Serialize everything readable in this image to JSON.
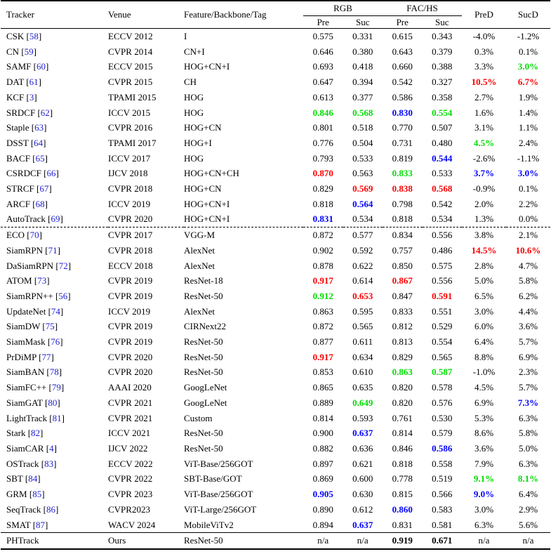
{
  "headers": {
    "tracker": "Tracker",
    "venue": "Venue",
    "feature": "Feature/Backbone/Tag",
    "rgb": "RGB",
    "fachs": "FAC/HS",
    "pred": "PreD",
    "sucd": "SucD",
    "pre": "Pre",
    "suc": "Suc"
  },
  "rows": [
    {
      "name": "CSK",
      "ref": "58",
      "venue": "ECCV 2012",
      "feat": "I",
      "vals": [
        {
          "v": "0.575"
        },
        {
          "v": "0.331"
        },
        {
          "v": "0.615"
        },
        {
          "v": "0.343"
        },
        {
          "v": "-4.0%"
        },
        {
          "v": "-1.2%"
        }
      ]
    },
    {
      "name": "CN",
      "ref": "59",
      "venue": "CVPR 2014",
      "feat": "CN+I",
      "vals": [
        {
          "v": "0.646"
        },
        {
          "v": "0.380"
        },
        {
          "v": "0.643"
        },
        {
          "v": "0.379"
        },
        {
          "v": "0.3%"
        },
        {
          "v": "0.1%"
        }
      ]
    },
    {
      "name": "SAMF",
      "ref": "60",
      "venue": "ECCV 2015",
      "feat": "HOG+CN+I",
      "vals": [
        {
          "v": "0.693"
        },
        {
          "v": "0.418"
        },
        {
          "v": "0.660"
        },
        {
          "v": "0.388"
        },
        {
          "v": "3.3%"
        },
        {
          "v": "3.0%",
          "c": "green"
        }
      ]
    },
    {
      "name": "DAT",
      "ref": "61",
      "venue": "CVPR 2015",
      "feat": "CH",
      "vals": [
        {
          "v": "0.647"
        },
        {
          "v": "0.394"
        },
        {
          "v": "0.542"
        },
        {
          "v": "0.327"
        },
        {
          "v": "10.5%",
          "c": "red"
        },
        {
          "v": "6.7%",
          "c": "red"
        }
      ]
    },
    {
      "name": "KCF",
      "ref": "3",
      "venue": "TPAMI 2015",
      "feat": "HOG",
      "vals": [
        {
          "v": "0.613"
        },
        {
          "v": "0.377"
        },
        {
          "v": "0.586"
        },
        {
          "v": "0.358"
        },
        {
          "v": "2.7%"
        },
        {
          "v": "1.9%"
        }
      ]
    },
    {
      "name": "SRDCF",
      "ref": "62",
      "venue": "ICCV 2015",
      "feat": "HOG",
      "vals": [
        {
          "v": "0.846",
          "c": "green"
        },
        {
          "v": "0.568",
          "c": "green"
        },
        {
          "v": "0.830",
          "c": "blue"
        },
        {
          "v": "0.554",
          "c": "green"
        },
        {
          "v": "1.6%"
        },
        {
          "v": "1.4%"
        }
      ]
    },
    {
      "name": "Staple",
      "ref": "63",
      "venue": "CVPR 2016",
      "feat": "HOG+CN",
      "vals": [
        {
          "v": "0.801"
        },
        {
          "v": "0.518"
        },
        {
          "v": "0.770"
        },
        {
          "v": "0.507"
        },
        {
          "v": "3.1%"
        },
        {
          "v": "1.1%"
        }
      ]
    },
    {
      "name": "DSST",
      "ref": "64",
      "venue": "TPAMI 2017",
      "feat": "HOG+I",
      "vals": [
        {
          "v": "0.776"
        },
        {
          "v": "0.504"
        },
        {
          "v": "0.731"
        },
        {
          "v": "0.480"
        },
        {
          "v": "4.5%",
          "c": "green"
        },
        {
          "v": "2.4%"
        }
      ]
    },
    {
      "name": "BACF",
      "ref": "65",
      "venue": "ICCV 2017",
      "feat": "HOG",
      "vals": [
        {
          "v": "0.793"
        },
        {
          "v": "0.533"
        },
        {
          "v": "0.819"
        },
        {
          "v": "0.544",
          "c": "blue"
        },
        {
          "v": "-2.6%"
        },
        {
          "v": "-1.1%"
        }
      ]
    },
    {
      "name": "CSRDCF",
      "ref": "66",
      "venue": "IJCV 2018",
      "feat": "HOG+CN+CH",
      "vals": [
        {
          "v": "0.870",
          "c": "red"
        },
        {
          "v": "0.563"
        },
        {
          "v": "0.833",
          "c": "green"
        },
        {
          "v": "0.533"
        },
        {
          "v": "3.7%",
          "c": "blue"
        },
        {
          "v": "3.0%",
          "c": "blue"
        }
      ]
    },
    {
      "name": "STRCF",
      "ref": "67",
      "venue": "CVPR 2018",
      "feat": "HOG+CN",
      "vals": [
        {
          "v": "0.829"
        },
        {
          "v": "0.569",
          "c": "red"
        },
        {
          "v": "0.838",
          "c": "red"
        },
        {
          "v": "0.568",
          "c": "red"
        },
        {
          "v": "-0.9%"
        },
        {
          "v": "0.1%"
        }
      ]
    },
    {
      "name": "ARCF",
      "ref": "68",
      "venue": "ICCV 2019",
      "feat": "HOG+CN+I",
      "vals": [
        {
          "v": "0.818"
        },
        {
          "v": "0.564",
          "c": "blue"
        },
        {
          "v": "0.798"
        },
        {
          "v": "0.542"
        },
        {
          "v": "2.0%"
        },
        {
          "v": "2.2%"
        }
      ]
    },
    {
      "name": "AutoTrack",
      "ref": "69",
      "venue": "CVPR 2020",
      "feat": "HOG+CN+I",
      "vals": [
        {
          "v": "0.831",
          "c": "blue"
        },
        {
          "v": "0.534"
        },
        {
          "v": "0.818"
        },
        {
          "v": "0.534"
        },
        {
          "v": "1.3%"
        },
        {
          "v": "0.0%"
        }
      ]
    },
    {
      "name": "ECO",
      "ref": "70",
      "venue": "CVPR 2017",
      "feat": "VGG-M",
      "sep": "dashed",
      "vals": [
        {
          "v": "0.872"
        },
        {
          "v": "0.577"
        },
        {
          "v": "0.834"
        },
        {
          "v": "0.556"
        },
        {
          "v": "3.8%"
        },
        {
          "v": "2.1%"
        }
      ]
    },
    {
      "name": "SiamRPN",
      "ref": "71",
      "venue": "CVPR 2018",
      "feat": "AlexNet",
      "vals": [
        {
          "v": "0.902"
        },
        {
          "v": "0.592"
        },
        {
          "v": "0.757"
        },
        {
          "v": "0.486"
        },
        {
          "v": "14.5%",
          "c": "red"
        },
        {
          "v": "10.6%",
          "c": "red"
        }
      ]
    },
    {
      "name": "DaSiamRPN",
      "ref": "72",
      "venue": "ECCV 2018",
      "feat": "AlexNet",
      "vals": [
        {
          "v": "0.878"
        },
        {
          "v": "0.622"
        },
        {
          "v": "0.850"
        },
        {
          "v": "0.575"
        },
        {
          "v": "2.8%"
        },
        {
          "v": "4.7%"
        }
      ]
    },
    {
      "name": "ATOM",
      "ref": "73",
      "venue": "CVPR 2019",
      "feat": "ResNet-18",
      "vals": [
        {
          "v": "0.917",
          "c": "red"
        },
        {
          "v": "0.614"
        },
        {
          "v": "0.867",
          "c": "red"
        },
        {
          "v": "0.556"
        },
        {
          "v": "5.0%"
        },
        {
          "v": "5.8%"
        }
      ]
    },
    {
      "name": "SiamRPN++",
      "ref": "56",
      "venue": "CVPR 2019",
      "feat": "ResNet-50",
      "vals": [
        {
          "v": "0.912",
          "c": "green"
        },
        {
          "v": "0.653",
          "c": "red"
        },
        {
          "v": "0.847"
        },
        {
          "v": "0.591",
          "c": "red"
        },
        {
          "v": "6.5%"
        },
        {
          "v": "6.2%"
        }
      ]
    },
    {
      "name": "UpdateNet",
      "ref": "74",
      "venue": "ICCV 2019",
      "feat": "AlexNet",
      "vals": [
        {
          "v": "0.863"
        },
        {
          "v": "0.595"
        },
        {
          "v": "0.833"
        },
        {
          "v": "0.551"
        },
        {
          "v": "3.0%"
        },
        {
          "v": "4.4%"
        }
      ]
    },
    {
      "name": "SiamDW",
      "ref": "75",
      "venue": "CVPR 2019",
      "feat": "CIRNext22",
      "vals": [
        {
          "v": "0.872"
        },
        {
          "v": "0.565"
        },
        {
          "v": "0.812"
        },
        {
          "v": "0.529"
        },
        {
          "v": "6.0%"
        },
        {
          "v": "3.6%"
        }
      ]
    },
    {
      "name": "SiamMask",
      "ref": "76",
      "venue": "CVPR 2019",
      "feat": "ResNet-50",
      "vals": [
        {
          "v": "0.877"
        },
        {
          "v": "0.611"
        },
        {
          "v": "0.813"
        },
        {
          "v": "0.554"
        },
        {
          "v": "6.4%"
        },
        {
          "v": "5.7%"
        }
      ]
    },
    {
      "name": "PrDiMP",
      "ref": "77",
      "venue": "CVPR 2020",
      "feat": "ResNet-50",
      "vals": [
        {
          "v": "0.917",
          "c": "red"
        },
        {
          "v": "0.634"
        },
        {
          "v": "0.829"
        },
        {
          "v": "0.565"
        },
        {
          "v": "8.8%"
        },
        {
          "v": "6.9%"
        }
      ]
    },
    {
      "name": "SiamBAN",
      "ref": "78",
      "venue": "CVPR 2020",
      "feat": "ResNet-50",
      "vals": [
        {
          "v": "0.853"
        },
        {
          "v": "0.610"
        },
        {
          "v": "0.863",
          "c": "green"
        },
        {
          "v": "0.587",
          "c": "green"
        },
        {
          "v": "-1.0%"
        },
        {
          "v": "2.3%"
        }
      ]
    },
    {
      "name": "SiamFC++",
      "ref": "79",
      "venue": "AAAI 2020",
      "feat": "GoogLeNet",
      "vals": [
        {
          "v": "0.865"
        },
        {
          "v": "0.635"
        },
        {
          "v": "0.820"
        },
        {
          "v": "0.578"
        },
        {
          "v": "4.5%"
        },
        {
          "v": "5.7%"
        }
      ]
    },
    {
      "name": "SiamGAT",
      "ref": "80",
      "venue": "CVPR 2021",
      "feat": "GoogLeNet",
      "vals": [
        {
          "v": "0.889"
        },
        {
          "v": "0.649",
          "c": "green"
        },
        {
          "v": "0.820"
        },
        {
          "v": "0.576"
        },
        {
          "v": "6.9%"
        },
        {
          "v": "7.3%",
          "c": "blue"
        }
      ]
    },
    {
      "name": "LightTrack",
      "ref": "81",
      "venue": "CVPR 2021",
      "feat": "Custom",
      "vals": [
        {
          "v": "0.814"
        },
        {
          "v": "0.593"
        },
        {
          "v": "0.761"
        },
        {
          "v": "0.530"
        },
        {
          "v": "5.3%"
        },
        {
          "v": "6.3%"
        }
      ]
    },
    {
      "name": "Stark",
      "ref": "82",
      "venue": "ICCV 2021",
      "feat": "ResNet-50",
      "vals": [
        {
          "v": "0.900"
        },
        {
          "v": "0.637",
          "c": "blue"
        },
        {
          "v": "0.814"
        },
        {
          "v": "0.579"
        },
        {
          "v": "8.6%"
        },
        {
          "v": "5.8%"
        }
      ]
    },
    {
      "name": "SiamCAR",
      "ref": "4",
      "venue": "IJCV 2022",
      "feat": "ResNet-50",
      "vals": [
        {
          "v": "0.882"
        },
        {
          "v": "0.636"
        },
        {
          "v": "0.846"
        },
        {
          "v": "0.586",
          "c": "blue"
        },
        {
          "v": "3.6%"
        },
        {
          "v": "5.0%"
        }
      ]
    },
    {
      "name": "OSTrack",
      "ref": "83",
      "venue": "ECCV 2022",
      "feat": "ViT-Base/256GOT",
      "vals": [
        {
          "v": "0.897"
        },
        {
          "v": "0.621"
        },
        {
          "v": "0.818"
        },
        {
          "v": "0.558"
        },
        {
          "v": "7.9%"
        },
        {
          "v": "6.3%"
        }
      ]
    },
    {
      "name": "SBT",
      "ref": "84",
      "venue": "CVPR 2022",
      "feat": "SBT-Base/GOT",
      "vals": [
        {
          "v": "0.869"
        },
        {
          "v": "0.600"
        },
        {
          "v": "0.778"
        },
        {
          "v": "0.519"
        },
        {
          "v": "9.1%",
          "c": "green"
        },
        {
          "v": "8.1%",
          "c": "green"
        }
      ]
    },
    {
      "name": "GRM",
      "ref": "85",
      "venue": "CVPR 2023",
      "feat": "ViT-Base/256GOT",
      "vals": [
        {
          "v": "0.905",
          "c": "blue"
        },
        {
          "v": "0.630"
        },
        {
          "v": "0.815"
        },
        {
          "v": "0.566"
        },
        {
          "v": "9.0%",
          "c": "blue"
        },
        {
          "v": "6.4%"
        }
      ]
    },
    {
      "name": "SeqTrack",
      "ref": "86",
      "venue": "CVPR2023",
      "feat": "ViT-Large/256GOT",
      "vals": [
        {
          "v": "0.890"
        },
        {
          "v": "0.612"
        },
        {
          "v": "0.860",
          "c": "blue"
        },
        {
          "v": "0.583"
        },
        {
          "v": "3.0%"
        },
        {
          "v": "2.9%"
        }
      ]
    },
    {
      "name": "SMAT",
      "ref": "87",
      "venue": "WACV 2024",
      "feat": "MobileViTv2",
      "vals": [
        {
          "v": "0.894"
        },
        {
          "v": "0.637",
          "c": "blue"
        },
        {
          "v": "0.831"
        },
        {
          "v": "0.581"
        },
        {
          "v": "6.3%"
        },
        {
          "v": "5.6%"
        }
      ]
    }
  ],
  "ours": {
    "name": "PHTrack",
    "venue": "Ours",
    "feat": "ResNet-50",
    "vals": [
      {
        "v": "n/a"
      },
      {
        "v": "n/a"
      },
      {
        "v": "0.919",
        "c": "bold"
      },
      {
        "v": "0.671",
        "c": "bold"
      },
      {
        "v": "n/a"
      },
      {
        "v": "n/a"
      }
    ]
  },
  "colors": {
    "red": "#ff0000",
    "green": "#00dd00",
    "blue": "#0000ff",
    "ref": "#1f1fd0"
  }
}
